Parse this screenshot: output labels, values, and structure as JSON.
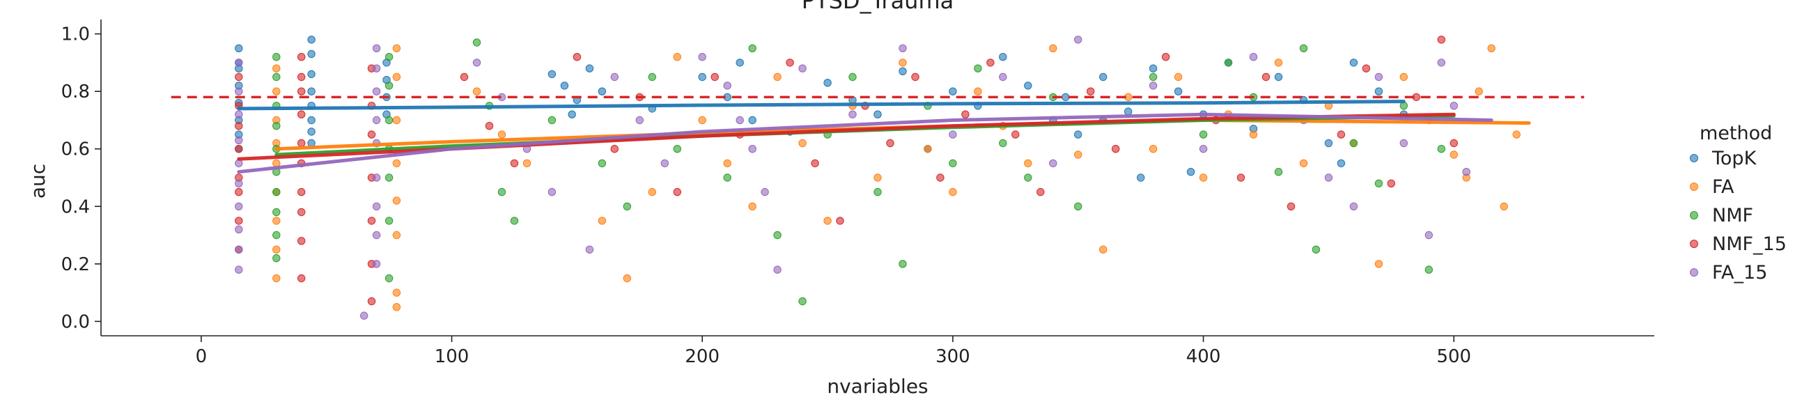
{
  "chart_data": {
    "type": "scatter",
    "title": "PTSD_Trauma",
    "xlabel": "nvariables",
    "ylabel": "auc",
    "xlim": [
      -40,
      580
    ],
    "ylim": [
      -0.05,
      1.05
    ],
    "xticks": [
      "0",
      "100",
      "200",
      "300",
      "400",
      "500"
    ],
    "yticks": [
      "0.0",
      "0.2",
      "0.4",
      "0.6",
      "0.8",
      "1.0"
    ],
    "xtick_values": [
      0,
      100,
      200,
      300,
      400,
      500
    ],
    "ytick_values": [
      0.0,
      0.2,
      0.4,
      0.6,
      0.8,
      1.0
    ],
    "grid": false,
    "legend": {
      "title": "method",
      "placement": "right"
    },
    "reference_line": {
      "y": 0.78,
      "x_range": [
        -12,
        552
      ],
      "color": "#d62728",
      "style": "dashed"
    },
    "series": [
      {
        "name": "TopK",
        "color": "#1f77b4",
        "trend": [
          [
            15,
            0.74
          ],
          [
            100,
            0.745
          ],
          [
            200,
            0.752
          ],
          [
            300,
            0.757
          ],
          [
            400,
            0.76
          ],
          [
            480,
            0.765
          ]
        ],
        "points": [
          [
            15,
            0.95
          ],
          [
            15,
            0.9
          ],
          [
            15,
            0.82
          ],
          [
            15,
            0.76
          ],
          [
            15,
            0.7
          ],
          [
            15,
            0.65
          ],
          [
            15,
            0.88
          ],
          [
            15,
            0.6
          ],
          [
            44,
            0.98
          ],
          [
            44,
            0.93
          ],
          [
            44,
            0.86
          ],
          [
            44,
            0.8
          ],
          [
            44,
            0.75
          ],
          [
            44,
            0.7
          ],
          [
            44,
            0.66
          ],
          [
            44,
            0.62
          ],
          [
            74,
            0.9
          ],
          [
            74,
            0.84
          ],
          [
            74,
            0.78
          ],
          [
            74,
            0.72
          ],
          [
            140,
            0.86
          ],
          [
            145,
            0.82
          ],
          [
            150,
            0.77
          ],
          [
            148,
            0.72
          ],
          [
            155,
            0.88
          ],
          [
            160,
            0.8
          ],
          [
            200,
            0.85
          ],
          [
            210,
            0.78
          ],
          [
            215,
            0.9
          ],
          [
            220,
            0.7
          ],
          [
            250,
            0.83
          ],
          [
            260,
            0.77
          ],
          [
            270,
            0.72
          ],
          [
            280,
            0.87
          ],
          [
            300,
            0.8
          ],
          [
            310,
            0.75
          ],
          [
            320,
            0.92
          ],
          [
            330,
            0.82
          ],
          [
            340,
            0.7
          ],
          [
            345,
            0.78
          ],
          [
            360,
            0.85
          ],
          [
            370,
            0.73
          ],
          [
            380,
            0.88
          ],
          [
            390,
            0.8
          ],
          [
            400,
            0.72
          ],
          [
            410,
            0.9
          ],
          [
            420,
            0.67
          ],
          [
            430,
            0.85
          ],
          [
            440,
            0.77
          ],
          [
            450,
            0.62
          ],
          [
            460,
            0.9
          ],
          [
            470,
            0.8
          ],
          [
            480,
            0.72
          ],
          [
            455,
            0.55
          ],
          [
            375,
            0.5
          ],
          [
            395,
            0.52
          ],
          [
            350,
            0.65
          ],
          [
            290,
            0.6
          ],
          [
            235,
            0.66
          ],
          [
            180,
            0.74
          ]
        ]
      },
      {
        "name": "FA",
        "color": "#ff7f0e",
        "trend": [
          [
            30,
            0.6
          ],
          [
            100,
            0.625
          ],
          [
            200,
            0.655
          ],
          [
            300,
            0.68
          ],
          [
            400,
            0.7
          ],
          [
            530,
            0.69
          ]
        ],
        "points": [
          [
            30,
            0.88
          ],
          [
            30,
            0.8
          ],
          [
            30,
            0.7
          ],
          [
            30,
            0.62
          ],
          [
            30,
            0.55
          ],
          [
            30,
            0.45
          ],
          [
            30,
            0.35
          ],
          [
            30,
            0.25
          ],
          [
            30,
            0.15
          ],
          [
            78,
            0.95
          ],
          [
            78,
            0.85
          ],
          [
            78,
            0.7
          ],
          [
            78,
            0.55
          ],
          [
            78,
            0.42
          ],
          [
            78,
            0.3
          ],
          [
            78,
            0.1
          ],
          [
            78,
            0.05
          ],
          [
            110,
            0.8
          ],
          [
            120,
            0.65
          ],
          [
            130,
            0.55
          ],
          [
            160,
            0.35
          ],
          [
            170,
            0.15
          ],
          [
            180,
            0.45
          ],
          [
            190,
            0.92
          ],
          [
            200,
            0.7
          ],
          [
            210,
            0.55
          ],
          [
            220,
            0.4
          ],
          [
            230,
            0.85
          ],
          [
            240,
            0.62
          ],
          [
            250,
            0.35
          ],
          [
            260,
            0.75
          ],
          [
            270,
            0.5
          ],
          [
            280,
            0.9
          ],
          [
            290,
            0.6
          ],
          [
            300,
            0.45
          ],
          [
            310,
            0.8
          ],
          [
            320,
            0.68
          ],
          [
            330,
            0.55
          ],
          [
            340,
            0.95
          ],
          [
            350,
            0.58
          ],
          [
            360,
            0.25
          ],
          [
            370,
            0.78
          ],
          [
            380,
            0.6
          ],
          [
            390,
            0.85
          ],
          [
            400,
            0.5
          ],
          [
            410,
            0.72
          ],
          [
            420,
            0.65
          ],
          [
            430,
            0.9
          ],
          [
            440,
            0.55
          ],
          [
            450,
            0.75
          ],
          [
            460,
            0.62
          ],
          [
            470,
            0.2
          ],
          [
            480,
            0.85
          ],
          [
            490,
            0.7
          ],
          [
            500,
            0.58
          ],
          [
            510,
            0.8
          ],
          [
            520,
            0.4
          ],
          [
            525,
            0.65
          ],
          [
            515,
            0.95
          ],
          [
            505,
            0.5
          ]
        ]
      },
      {
        "name": "NMF",
        "color": "#2ca02c",
        "trend": [
          [
            30,
            0.58
          ],
          [
            100,
            0.61
          ],
          [
            200,
            0.645
          ],
          [
            300,
            0.675
          ],
          [
            400,
            0.7
          ],
          [
            500,
            0.715
          ]
        ],
        "points": [
          [
            30,
            0.92
          ],
          [
            30,
            0.85
          ],
          [
            30,
            0.75
          ],
          [
            30,
            0.68
          ],
          [
            30,
            0.6
          ],
          [
            30,
            0.52
          ],
          [
            30,
            0.45
          ],
          [
            30,
            0.38
          ],
          [
            30,
            0.3
          ],
          [
            30,
            0.22
          ],
          [
            75,
            0.92
          ],
          [
            75,
            0.82
          ],
          [
            75,
            0.7
          ],
          [
            75,
            0.6
          ],
          [
            75,
            0.5
          ],
          [
            75,
            0.35
          ],
          [
            75,
            0.15
          ],
          [
            110,
            0.97
          ],
          [
            115,
            0.75
          ],
          [
            120,
            0.45
          ],
          [
            125,
            0.35
          ],
          [
            140,
            0.7
          ],
          [
            160,
            0.55
          ],
          [
            170,
            0.4
          ],
          [
            180,
            0.85
          ],
          [
            190,
            0.6
          ],
          [
            210,
            0.5
          ],
          [
            220,
            0.95
          ],
          [
            230,
            0.3
          ],
          [
            240,
            0.07
          ],
          [
            250,
            0.65
          ],
          [
            260,
            0.85
          ],
          [
            270,
            0.45
          ],
          [
            280,
            0.2
          ],
          [
            290,
            0.75
          ],
          [
            300,
            0.55
          ],
          [
            310,
            0.88
          ],
          [
            320,
            0.62
          ],
          [
            330,
            0.5
          ],
          [
            340,
            0.78
          ],
          [
            350,
            0.4
          ],
          [
            360,
            0.7
          ],
          [
            380,
            0.85
          ],
          [
            400,
            0.65
          ],
          [
            420,
            0.78
          ],
          [
            440,
            0.95
          ],
          [
            445,
            0.25
          ],
          [
            460,
            0.62
          ],
          [
            480,
            0.75
          ],
          [
            490,
            0.18
          ],
          [
            495,
            0.6
          ],
          [
            470,
            0.48
          ],
          [
            430,
            0.52
          ],
          [
            410,
            0.9
          ]
        ]
      },
      {
        "name": "NMF_15",
        "color": "#d62728",
        "trend": [
          [
            15,
            0.565
          ],
          [
            100,
            0.6
          ],
          [
            200,
            0.645
          ],
          [
            300,
            0.68
          ],
          [
            400,
            0.705
          ],
          [
            500,
            0.72
          ]
        ],
        "points": [
          [
            15,
            0.85
          ],
          [
            15,
            0.75
          ],
          [
            15,
            0.68
          ],
          [
            15,
            0.6
          ],
          [
            15,
            0.5
          ],
          [
            15,
            0.45
          ],
          [
            15,
            0.35
          ],
          [
            15,
            0.25
          ],
          [
            40,
            0.92
          ],
          [
            40,
            0.85
          ],
          [
            40,
            0.8
          ],
          [
            40,
            0.72
          ],
          [
            40,
            0.62
          ],
          [
            40,
            0.55
          ],
          [
            40,
            0.45
          ],
          [
            40,
            0.38
          ],
          [
            40,
            0.28
          ],
          [
            40,
            0.15
          ],
          [
            68,
            0.88
          ],
          [
            68,
            0.75
          ],
          [
            68,
            0.65
          ],
          [
            68,
            0.5
          ],
          [
            68,
            0.35
          ],
          [
            68,
            0.2
          ],
          [
            68,
            0.07
          ],
          [
            105,
            0.85
          ],
          [
            115,
            0.68
          ],
          [
            125,
            0.55
          ],
          [
            150,
            0.92
          ],
          [
            165,
            0.6
          ],
          [
            175,
            0.78
          ],
          [
            190,
            0.45
          ],
          [
            205,
            0.85
          ],
          [
            215,
            0.65
          ],
          [
            235,
            0.9
          ],
          [
            245,
            0.55
          ],
          [
            255,
            0.35
          ],
          [
            265,
            0.75
          ],
          [
            275,
            0.62
          ],
          [
            285,
            0.85
          ],
          [
            295,
            0.5
          ],
          [
            305,
            0.72
          ],
          [
            315,
            0.9
          ],
          [
            325,
            0.65
          ],
          [
            335,
            0.45
          ],
          [
            355,
            0.8
          ],
          [
            365,
            0.6
          ],
          [
            385,
            0.92
          ],
          [
            405,
            0.7
          ],
          [
            415,
            0.5
          ],
          [
            425,
            0.85
          ],
          [
            435,
            0.4
          ],
          [
            455,
            0.65
          ],
          [
            465,
            0.88
          ],
          [
            475,
            0.48
          ],
          [
            485,
            0.78
          ],
          [
            495,
            0.98
          ],
          [
            500,
            0.62
          ]
        ]
      },
      {
        "name": "FA_15",
        "color": "#9467bd",
        "trend": [
          [
            15,
            0.52
          ],
          [
            100,
            0.6
          ],
          [
            200,
            0.66
          ],
          [
            300,
            0.7
          ],
          [
            400,
            0.72
          ],
          [
            515,
            0.7
          ]
        ],
        "points": [
          [
            15,
            0.9
          ],
          [
            15,
            0.8
          ],
          [
            15,
            0.72
          ],
          [
            15,
            0.63
          ],
          [
            15,
            0.55
          ],
          [
            15,
            0.48
          ],
          [
            15,
            0.4
          ],
          [
            15,
            0.32
          ],
          [
            15,
            0.25
          ],
          [
            15,
            0.18
          ],
          [
            70,
            0.95
          ],
          [
            70,
            0.88
          ],
          [
            70,
            0.8
          ],
          [
            70,
            0.7
          ],
          [
            70,
            0.62
          ],
          [
            70,
            0.5
          ],
          [
            70,
            0.4
          ],
          [
            70,
            0.3
          ],
          [
            70,
            0.2
          ],
          [
            65,
            0.02
          ],
          [
            110,
            0.9
          ],
          [
            120,
            0.78
          ],
          [
            130,
            0.6
          ],
          [
            140,
            0.45
          ],
          [
            155,
            0.25
          ],
          [
            165,
            0.85
          ],
          [
            175,
            0.7
          ],
          [
            185,
            0.55
          ],
          [
            200,
            0.92
          ],
          [
            210,
            0.82
          ],
          [
            215,
            0.7
          ],
          [
            220,
            0.6
          ],
          [
            225,
            0.45
          ],
          [
            230,
            0.18
          ],
          [
            240,
            0.88
          ],
          [
            260,
            0.72
          ],
          [
            280,
            0.95
          ],
          [
            300,
            0.65
          ],
          [
            320,
            0.85
          ],
          [
            340,
            0.55
          ],
          [
            350,
            0.98
          ],
          [
            360,
            0.7
          ],
          [
            380,
            0.82
          ],
          [
            400,
            0.6
          ],
          [
            420,
            0.92
          ],
          [
            440,
            0.7
          ],
          [
            450,
            0.5
          ],
          [
            460,
            0.4
          ],
          [
            470,
            0.85
          ],
          [
            480,
            0.62
          ],
          [
            490,
            0.3
          ],
          [
            500,
            0.75
          ],
          [
            505,
            0.52
          ],
          [
            495,
            0.9
          ]
        ]
      }
    ]
  }
}
